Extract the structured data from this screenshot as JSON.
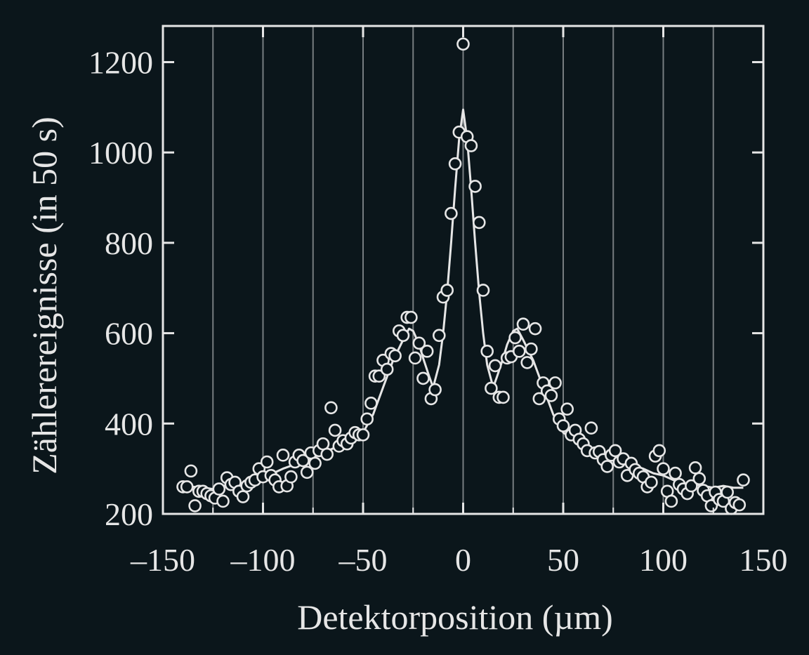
{
  "chart_data": {
    "type": "scatter",
    "xlabel": "Detektorposition (µm)",
    "ylabel": "Zählerereignisse (in 50 s)",
    "xlim": [
      -150,
      150
    ],
    "ylim": [
      200,
      1280
    ],
    "xticks": [
      -150,
      -100,
      -50,
      0,
      50,
      100,
      150
    ],
    "xtick_labels": [
      "–150",
      "–100",
      "–50",
      "0",
      "50",
      "100",
      "150"
    ],
    "yticks": [
      200,
      400,
      600,
      800,
      1000,
      1200
    ],
    "ytick_labels": [
      "200",
      "400",
      "600",
      "800",
      "1000",
      "1200"
    ],
    "vertical_gridlines_at": [
      -125,
      -100,
      -75,
      -50,
      -25,
      0,
      25,
      50,
      75,
      100,
      125
    ],
    "grid": "vertical",
    "colors": {
      "background": "#0b161b",
      "foreground": "#e6e6e6",
      "grid": "#8a8f92"
    },
    "series": [
      {
        "kind": "markers",
        "marker": "open-circle",
        "points": [
          [
            -140,
            260
          ],
          [
            -138,
            260
          ],
          [
            -136,
            295
          ],
          [
            -134,
            218
          ],
          [
            -132,
            250
          ],
          [
            -130,
            250
          ],
          [
            -128,
            245
          ],
          [
            -126,
            240
          ],
          [
            -124,
            235
          ],
          [
            -122,
            255
          ],
          [
            -120,
            228
          ],
          [
            -118,
            280
          ],
          [
            -116,
            265
          ],
          [
            -114,
            270
          ],
          [
            -112,
            250
          ],
          [
            -110,
            238
          ],
          [
            -108,
            262
          ],
          [
            -106,
            270
          ],
          [
            -104,
            275
          ],
          [
            -102,
            300
          ],
          [
            -100,
            282
          ],
          [
            -98,
            315
          ],
          [
            -96,
            285
          ],
          [
            -94,
            275
          ],
          [
            -92,
            260
          ],
          [
            -90,
            330
          ],
          [
            -88,
            262
          ],
          [
            -86,
            282
          ],
          [
            -84,
            315
          ],
          [
            -82,
            330
          ],
          [
            -80,
            318
          ],
          [
            -78,
            292
          ],
          [
            -76,
            335
          ],
          [
            -74,
            312
          ],
          [
            -72,
            340
          ],
          [
            -70,
            355
          ],
          [
            -68,
            332
          ],
          [
            -66,
            435
          ],
          [
            -64,
            385
          ],
          [
            -62,
            350
          ],
          [
            -60,
            362
          ],
          [
            -58,
            355
          ],
          [
            -56,
            368
          ],
          [
            -54,
            380
          ],
          [
            -52,
            375
          ],
          [
            -50,
            375
          ],
          [
            -48,
            410
          ],
          [
            -46,
            445
          ],
          [
            -44,
            505
          ],
          [
            -42,
            505
          ],
          [
            -40,
            540
          ],
          [
            -38,
            520
          ],
          [
            -36,
            555
          ],
          [
            -34,
            550
          ],
          [
            -32,
            605
          ],
          [
            -30,
            595
          ],
          [
            -28,
            635
          ],
          [
            -26,
            635
          ],
          [
            -24,
            545
          ],
          [
            -22,
            578
          ],
          [
            -20,
            500
          ],
          [
            -18,
            560
          ],
          [
            -16,
            455
          ],
          [
            -14,
            475
          ],
          [
            -12,
            595
          ],
          [
            -10,
            680
          ],
          [
            -8,
            695
          ],
          [
            -6,
            865
          ],
          [
            -4,
            975
          ],
          [
            -2,
            1045
          ],
          [
            0,
            1240
          ],
          [
            2,
            1035
          ],
          [
            4,
            1015
          ],
          [
            6,
            925
          ],
          [
            8,
            845
          ],
          [
            10,
            695
          ],
          [
            12,
            560
          ],
          [
            14,
            478
          ],
          [
            16,
            528
          ],
          [
            18,
            458
          ],
          [
            20,
            458
          ],
          [
            22,
            545
          ],
          [
            24,
            548
          ],
          [
            26,
            590
          ],
          [
            28,
            560
          ],
          [
            30,
            620
          ],
          [
            32,
            535
          ],
          [
            34,
            565
          ],
          [
            36,
            610
          ],
          [
            38,
            455
          ],
          [
            40,
            490
          ],
          [
            42,
            472
          ],
          [
            44,
            462
          ],
          [
            46,
            490
          ],
          [
            48,
            410
          ],
          [
            50,
            395
          ],
          [
            52,
            432
          ],
          [
            54,
            375
          ],
          [
            56,
            385
          ],
          [
            58,
            365
          ],
          [
            60,
            355
          ],
          [
            62,
            340
          ],
          [
            64,
            390
          ],
          [
            66,
            335
          ],
          [
            68,
            338
          ],
          [
            70,
            320
          ],
          [
            72,
            305
          ],
          [
            74,
            330
          ],
          [
            76,
            340
          ],
          [
            78,
            315
          ],
          [
            80,
            322
          ],
          [
            82,
            285
          ],
          [
            84,
            312
          ],
          [
            86,
            298
          ],
          [
            88,
            290
          ],
          [
            90,
            282
          ],
          [
            92,
            260
          ],
          [
            94,
            270
          ],
          [
            96,
            328
          ],
          [
            98,
            340
          ],
          [
            100,
            300
          ],
          [
            102,
            250
          ],
          [
            104,
            228
          ],
          [
            106,
            290
          ],
          [
            108,
            265
          ],
          [
            110,
            255
          ],
          [
            112,
            245
          ],
          [
            114,
            262
          ],
          [
            116,
            302
          ],
          [
            118,
            278
          ],
          [
            120,
            252
          ],
          [
            122,
            240
          ],
          [
            124,
            218
          ],
          [
            126,
            248
          ],
          [
            128,
            232
          ],
          [
            130,
            228
          ],
          [
            132,
            248
          ],
          [
            134,
            212
          ],
          [
            136,
            225
          ],
          [
            138,
            220
          ],
          [
            140,
            275
          ]
        ]
      },
      {
        "kind": "line",
        "points": [
          [
            -140,
            260
          ],
          [
            -135,
            260
          ],
          [
            -130,
            258
          ],
          [
            -125,
            255
          ],
          [
            -120,
            262
          ],
          [
            -115,
            265
          ],
          [
            -110,
            268
          ],
          [
            -105,
            275
          ],
          [
            -100,
            285
          ],
          [
            -95,
            290
          ],
          [
            -90,
            300
          ],
          [
            -85,
            308
          ],
          [
            -80,
            315
          ],
          [
            -75,
            325
          ],
          [
            -70,
            335
          ],
          [
            -65,
            345
          ],
          [
            -60,
            355
          ],
          [
            -55,
            365
          ],
          [
            -50,
            380
          ],
          [
            -45,
            420
          ],
          [
            -40,
            480
          ],
          [
            -35,
            540
          ],
          [
            -30,
            585
          ],
          [
            -27,
            610
          ],
          [
            -25,
            605
          ],
          [
            -22,
            575
          ],
          [
            -20,
            545
          ],
          [
            -17,
            505
          ],
          [
            -15,
            480
          ],
          [
            -12,
            530
          ],
          [
            -10,
            600
          ],
          [
            -8,
            690
          ],
          [
            -6,
            800
          ],
          [
            -4,
            920
          ],
          [
            -2,
            1030
          ],
          [
            0,
            1095
          ],
          [
            2,
            1030
          ],
          [
            4,
            920
          ],
          [
            6,
            800
          ],
          [
            8,
            690
          ],
          [
            10,
            600
          ],
          [
            12,
            530
          ],
          [
            15,
            480
          ],
          [
            17,
            505
          ],
          [
            20,
            545
          ],
          [
            22,
            575
          ],
          [
            25,
            605
          ],
          [
            27,
            610
          ],
          [
            30,
            585
          ],
          [
            35,
            540
          ],
          [
            40,
            480
          ],
          [
            45,
            420
          ],
          [
            50,
            380
          ],
          [
            55,
            365
          ],
          [
            60,
            355
          ],
          [
            65,
            345
          ],
          [
            70,
            335
          ],
          [
            75,
            325
          ],
          [
            80,
            315
          ],
          [
            85,
            308
          ],
          [
            90,
            300
          ],
          [
            95,
            290
          ],
          [
            100,
            285
          ],
          [
            105,
            275
          ],
          [
            110,
            268
          ],
          [
            115,
            265
          ],
          [
            120,
            262
          ],
          [
            125,
            258
          ],
          [
            130,
            262
          ],
          [
            135,
            258
          ],
          [
            140,
            258
          ]
        ]
      }
    ]
  }
}
